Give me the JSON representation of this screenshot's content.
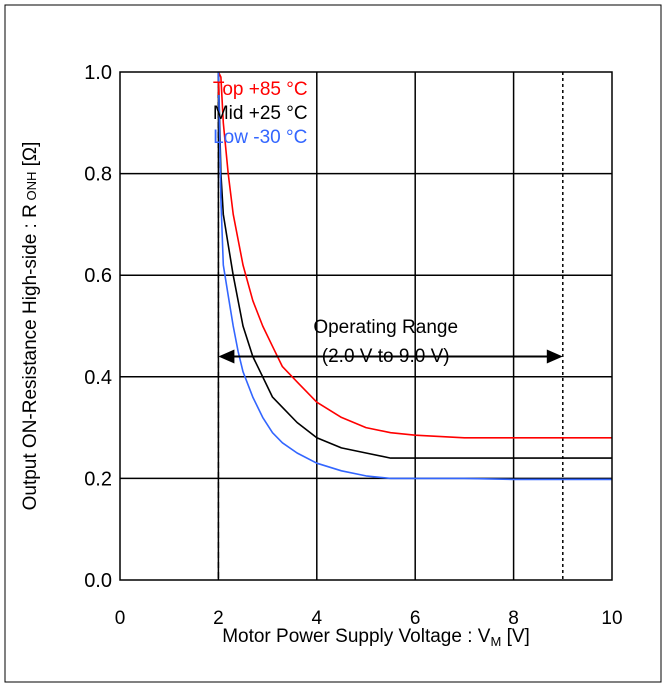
{
  "chart_data": {
    "type": "line",
    "xlabel_main": "Motor Power Supply Voltage : V",
    "xlabel_sub": "M",
    "xlabel_unit": " [V]",
    "ylabel_main": "Output ON-Resistance High-side : R",
    "ylabel_sub": " ONH",
    "ylabel_unit": " [Ω]",
    "xlim": [
      0,
      10
    ],
    "ylim": [
      0.0,
      1.0
    ],
    "x_ticks": [
      0,
      2,
      4,
      6,
      8,
      10
    ],
    "x_tick_labels": [
      "0",
      "2",
      "4",
      "6",
      "8",
      "10"
    ],
    "y_ticks": [
      0.0,
      0.2,
      0.4,
      0.6,
      0.8,
      1.0
    ],
    "y_tick_labels": [
      "0.0",
      "0.2",
      "0.4",
      "0.6",
      "0.8",
      "1.0"
    ],
    "grid": true,
    "legend_placement": "top-center",
    "series": [
      {
        "name": "Top +85 °C",
        "color": "#ff0000",
        "x": [
          2.0,
          2.05,
          2.1,
          2.2,
          2.3,
          2.4,
          2.5,
          2.7,
          2.9,
          3.1,
          3.3,
          3.6,
          4.0,
          4.5,
          5.0,
          5.5,
          6.0,
          7.0,
          8.0,
          9.0,
          10.0
        ],
        "y": [
          1.0,
          0.99,
          0.9,
          0.8,
          0.72,
          0.67,
          0.62,
          0.55,
          0.5,
          0.46,
          0.42,
          0.39,
          0.35,
          0.32,
          0.3,
          0.29,
          0.285,
          0.28,
          0.28,
          0.28,
          0.28
        ]
      },
      {
        "name": "Mid +25 °C",
        "color": "#000000",
        "x": [
          2.0,
          2.05,
          2.1,
          2.2,
          2.3,
          2.4,
          2.5,
          2.7,
          2.9,
          3.1,
          3.3,
          3.6,
          4.0,
          4.5,
          5.0,
          5.5,
          6.0,
          7.0,
          8.0,
          9.0,
          10.0
        ],
        "y": [
          1.0,
          0.8,
          0.72,
          0.66,
          0.6,
          0.55,
          0.5,
          0.44,
          0.4,
          0.36,
          0.34,
          0.31,
          0.28,
          0.26,
          0.25,
          0.24,
          0.24,
          0.24,
          0.24,
          0.24,
          0.24
        ]
      },
      {
        "name": "Low -30 °C",
        "color": "#3366ff",
        "x": [
          2.0,
          2.05,
          2.1,
          2.2,
          2.3,
          2.4,
          2.5,
          2.7,
          2.9,
          3.1,
          3.3,
          3.6,
          4.0,
          4.5,
          5.0,
          5.5,
          6.0,
          7.0,
          8.0,
          9.0,
          10.0
        ],
        "y": [
          1.0,
          0.75,
          0.62,
          0.56,
          0.5,
          0.45,
          0.41,
          0.36,
          0.32,
          0.29,
          0.27,
          0.25,
          0.23,
          0.215,
          0.205,
          0.2,
          0.2,
          0.2,
          0.198,
          0.198,
          0.198
        ]
      }
    ],
    "annotation": {
      "line1": "Operating Range",
      "line2": "(2.0 V to 9.0 V)",
      "range_x": [
        2.0,
        9.0
      ],
      "arrow_y": 0.44,
      "text_y": 0.5
    },
    "markers": [
      {
        "x": 2.0,
        "style": "dashed"
      },
      {
        "x": 9.0,
        "style": "dotted"
      }
    ]
  }
}
